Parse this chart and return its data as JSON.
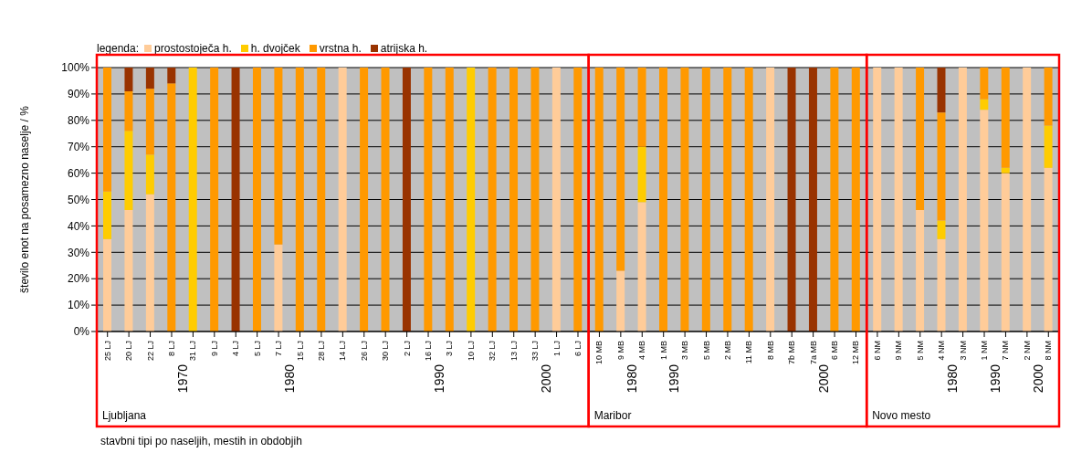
{
  "chart_data": {
    "type": "bar",
    "stacked": true,
    "ylabel": "število enot na posamezno naselje / %",
    "legend_title": "legenda:",
    "legend": "top left",
    "grid": "y",
    "categories": [
      "25 LJ",
      "20 LJ",
      "22 LJ",
      "8 LJ",
      "31 LJ",
      "9 LJ",
      "4 LJ",
      "5 LJ",
      "7 LJ",
      "15 LJ",
      "28 LJ",
      "14 LJ",
      "26 LJ",
      "30 LJ",
      "2 LJ",
      "16 LJ",
      "3 LJ",
      "10 LJ",
      "32 LJ",
      "13 LJ",
      "33 LJ",
      "1 LJ",
      "6 LJ",
      "10 MB",
      "9 MB",
      "4 MB",
      "1 MB",
      "3 MB",
      "5 MB",
      "2 MB",
      "11 MB",
      "8 MB",
      "7b MB",
      "7a MB",
      "6 MB",
      "12 MB",
      "6 NM",
      "9 NM",
      "5 NM",
      "4 NM",
      "3 NM",
      "1 NM",
      "7 NM",
      "2 NM",
      "8 NM"
    ],
    "series": [
      {
        "name": "prostostoječa h.",
        "color": "#ffcc99",
        "values": [
          35,
          46,
          52,
          0,
          0,
          0,
          0,
          0,
          33,
          0,
          0,
          100,
          0,
          0,
          0,
          0,
          0,
          0,
          0,
          0,
          0,
          100,
          0,
          0,
          23,
          49,
          0,
          0,
          0,
          0,
          0,
          100,
          0,
          0,
          0,
          0,
          100,
          100,
          46,
          35,
          100,
          84,
          60,
          100,
          62
        ]
      },
      {
        "name": "h. dvojček",
        "color": "#ffcc00",
        "values": [
          18,
          30,
          15,
          0,
          100,
          0,
          0,
          0,
          0,
          0,
          0,
          0,
          0,
          0,
          0,
          0,
          0,
          100,
          0,
          0,
          0,
          0,
          0,
          0,
          0,
          21,
          0,
          0,
          0,
          0,
          0,
          0,
          0,
          0,
          0,
          0,
          0,
          0,
          0,
          7,
          0,
          4,
          2,
          0,
          16
        ]
      },
      {
        "name": "vrstna h.",
        "color": "#ff9900",
        "values": [
          47,
          15,
          25,
          94,
          0,
          100,
          0,
          100,
          67,
          100,
          100,
          0,
          100,
          100,
          0,
          100,
          100,
          0,
          100,
          100,
          100,
          0,
          100,
          100,
          77,
          30,
          100,
          100,
          100,
          100,
          100,
          0,
          0,
          0,
          100,
          100,
          0,
          0,
          54,
          41,
          0,
          12,
          38,
          0,
          22
        ]
      },
      {
        "name": "atrijska h.",
        "color": "#993300",
        "values": [
          0,
          9,
          8,
          6,
          0,
          0,
          100,
          0,
          0,
          0,
          0,
          0,
          0,
          0,
          100,
          0,
          0,
          0,
          0,
          0,
          0,
          0,
          0,
          0,
          0,
          0,
          0,
          0,
          0,
          0,
          0,
          0,
          100,
          100,
          0,
          0,
          0,
          0,
          0,
          17,
          0,
          0,
          0,
          0,
          0
        ]
      }
    ],
    "ylim": [
      0,
      100
    ],
    "yticks": [
      {
        "value": 0,
        "label": "0%"
      },
      {
        "value": 10,
        "label": "10%"
      },
      {
        "value": 20,
        "label": "20%"
      },
      {
        "value": 30,
        "label": "30%"
      },
      {
        "value": 40,
        "label": "40%"
      },
      {
        "value": 50,
        "label": "50%"
      },
      {
        "value": 60,
        "label": "60%"
      },
      {
        "value": 70,
        "label": "70%"
      },
      {
        "value": 80,
        "label": "80%"
      },
      {
        "value": 90,
        "label": "90%"
      },
      {
        "value": 100,
        "label": "100%"
      }
    ],
    "annotations": [
      "1970",
      "1980",
      "1990",
      "2000",
      "Ljubljana",
      "1980",
      "1990",
      "2000",
      "Maribor",
      "1980",
      "1990",
      "2000",
      "Novo mesto",
      "stavbni tipi po naseljih, mestih in obdobjih"
    ]
  }
}
